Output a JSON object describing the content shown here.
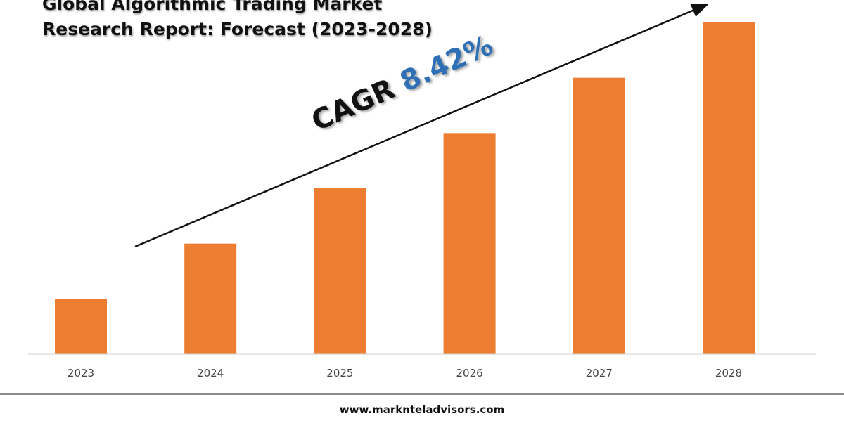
{
  "chart_data": {
    "type": "bar",
    "title_lines": [
      "Global Algorithmic Trading Market",
      "Research Report: Forecast (2023-2028)"
    ],
    "categories": [
      "2023",
      "2024",
      "2025",
      "2026",
      "2027",
      "2028"
    ],
    "values": [
      1,
      2,
      3,
      4,
      5,
      6
    ],
    "ylim": [
      0,
      6
    ],
    "grid": false,
    "legend": "none",
    "bar_color": "#ed7d31",
    "annotation": {
      "label": "CAGR",
      "value": "8.42%",
      "label_color": "#111111",
      "value_color": "#2f6fb5"
    }
  },
  "footer": {
    "url": "www.marknteladvisors.com"
  }
}
